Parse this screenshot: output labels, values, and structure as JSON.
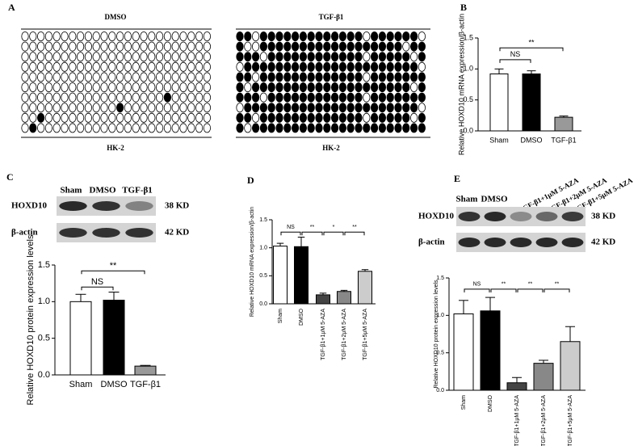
{
  "panel_labels": [
    "A",
    "B",
    "C",
    "D",
    "E"
  ],
  "methylation": [
    {
      "title": "DMSO",
      "cell": "HK-2",
      "sites": [
        [
          0,
          0,
          0,
          0,
          0,
          0,
          0,
          0,
          0,
          0,
          0,
          0,
          0,
          0,
          0,
          0,
          0,
          0,
          0,
          0,
          0,
          0,
          0,
          0
        ],
        [
          0,
          0,
          0,
          0,
          0,
          0,
          0,
          0,
          0,
          0,
          0,
          0,
          0,
          0,
          0,
          0,
          0,
          0,
          0,
          0,
          0,
          0,
          0,
          0
        ],
        [
          0,
          0,
          0,
          0,
          0,
          0,
          0,
          0,
          0,
          0,
          0,
          0,
          0,
          0,
          0,
          0,
          0,
          0,
          0,
          0,
          0,
          0,
          0,
          0
        ],
        [
          0,
          0,
          0,
          0,
          0,
          0,
          0,
          0,
          0,
          0,
          0,
          0,
          0,
          0,
          0,
          0,
          0,
          0,
          0,
          0,
          0,
          0,
          0,
          0
        ],
        [
          0,
          0,
          0,
          0,
          0,
          0,
          0,
          0,
          0,
          0,
          0,
          0,
          0,
          0,
          0,
          0,
          0,
          0,
          0,
          0,
          0,
          0,
          0,
          0
        ],
        [
          0,
          0,
          0,
          0,
          0,
          0,
          0,
          0,
          0,
          0,
          0,
          0,
          0,
          0,
          0,
          0,
          0,
          0,
          0,
          0,
          0,
          0,
          0,
          0
        ],
        [
          0,
          0,
          0,
          0,
          0,
          0,
          0,
          0,
          0,
          0,
          0,
          0,
          0,
          0,
          0,
          0,
          0,
          0,
          1,
          0,
          0,
          0,
          0,
          0
        ],
        [
          0,
          0,
          0,
          0,
          0,
          0,
          0,
          0,
          0,
          0,
          0,
          0,
          1,
          0,
          0,
          0,
          0,
          0,
          0,
          0,
          0,
          0,
          0,
          0
        ],
        [
          0,
          0,
          1,
          0,
          0,
          0,
          0,
          0,
          0,
          0,
          0,
          0,
          0,
          0,
          0,
          0,
          0,
          0,
          0,
          0,
          0,
          0,
          0,
          0
        ],
        [
          0,
          1,
          0,
          0,
          0,
          0,
          0,
          0,
          0,
          0,
          0,
          0,
          0,
          0,
          0,
          0,
          0,
          0,
          0,
          0,
          0,
          0,
          0,
          0
        ]
      ]
    },
    {
      "title": "TGF-β1",
      "cell": "HK-2",
      "sites": [
        [
          1,
          1,
          0,
          1,
          1,
          1,
          1,
          1,
          1,
          1,
          1,
          1,
          1,
          1,
          1,
          1,
          0,
          1,
          1,
          1,
          1,
          1,
          1,
          0
        ],
        [
          1,
          0,
          0,
          1,
          1,
          1,
          1,
          1,
          1,
          1,
          1,
          1,
          1,
          1,
          1,
          1,
          1,
          1,
          1,
          1,
          1,
          0,
          1,
          1
        ],
        [
          1,
          1,
          1,
          0,
          1,
          1,
          1,
          1,
          1,
          1,
          1,
          1,
          1,
          1,
          1,
          1,
          0,
          1,
          1,
          1,
          1,
          1,
          0,
          1
        ],
        [
          0,
          1,
          1,
          1,
          1,
          1,
          1,
          1,
          1,
          1,
          1,
          1,
          1,
          1,
          1,
          1,
          1,
          1,
          1,
          1,
          1,
          1,
          1,
          0
        ],
        [
          1,
          1,
          0,
          1,
          1,
          1,
          1,
          1,
          1,
          1,
          1,
          1,
          1,
          1,
          1,
          1,
          0,
          1,
          1,
          1,
          1,
          1,
          1,
          1
        ],
        [
          1,
          0,
          1,
          1,
          1,
          1,
          1,
          1,
          1,
          1,
          1,
          1,
          1,
          1,
          1,
          1,
          1,
          1,
          1,
          1,
          1,
          1,
          0,
          1
        ],
        [
          1,
          1,
          1,
          0,
          1,
          1,
          1,
          1,
          1,
          1,
          1,
          1,
          1,
          1,
          1,
          1,
          0,
          1,
          1,
          1,
          1,
          1,
          1,
          1
        ],
        [
          0,
          1,
          1,
          1,
          1,
          1,
          1,
          1,
          1,
          1,
          1,
          1,
          1,
          1,
          1,
          1,
          1,
          1,
          1,
          1,
          1,
          1,
          1,
          0
        ],
        [
          1,
          1,
          0,
          1,
          1,
          1,
          1,
          1,
          1,
          1,
          1,
          1,
          1,
          1,
          1,
          1,
          0,
          1,
          1,
          1,
          1,
          1,
          0,
          1
        ],
        [
          1,
          0,
          1,
          1,
          1,
          1,
          1,
          1,
          1,
          1,
          1,
          1,
          1,
          1,
          1,
          1,
          1,
          1,
          1,
          1,
          1,
          1,
          1,
          1
        ]
      ]
    }
  ],
  "blots": [
    {
      "lanes": [
        "Sham",
        "DMSO",
        "TGF-β1"
      ],
      "rows": [
        {
          "protein": "HOXD10",
          "size": "38 KD"
        },
        {
          "protein": "β-actin",
          "size": "42 KD"
        }
      ]
    },
    {
      "lanes": [
        "Sham",
        "DMSO",
        "TGF-β1+1μM 5-AZA",
        "TGF-β1+2μM 5-AZA",
        "TGF-β1+5μM 5-AZA"
      ],
      "rows": [
        {
          "protein": "HOXD10",
          "size": "38 KD"
        },
        {
          "protein": "β-actin",
          "size": "42 KD"
        }
      ]
    }
  ],
  "chart_data": [
    {
      "type": "bar",
      "ylabel": "Relative HOXD10 mRNA expression/β-actin",
      "categories": [
        "Sham",
        "DMSO",
        "TGF-β1"
      ],
      "values": [
        0.92,
        0.92,
        0.22
      ],
      "errors": [
        0.08,
        0.05,
        0.02
      ],
      "colors": [
        "#ffffff",
        "#000000",
        "#999999"
      ],
      "ylim": [
        0,
        1.5
      ],
      "yticks": [
        {
          "value": 0,
          "label": "0.0"
        },
        {
          "value": 0.5,
          "label": "0.5"
        },
        {
          "value": 1,
          "label": "1.0"
        },
        {
          "value": 1.5,
          "label": "1.5"
        }
      ],
      "annotations": [
        "NS",
        "**"
      ]
    },
    {
      "type": "bar",
      "ylabel": "Relative HOXD10 protein expression levels",
      "categories": [
        "Sham",
        "DMSO",
        "TGF-β1"
      ],
      "values": [
        1.0,
        1.02,
        0.12
      ],
      "errors": [
        0.1,
        0.11,
        0.01
      ],
      "colors": [
        "#ffffff",
        "#000000",
        "#999999"
      ],
      "ylim": [
        0,
        1.5
      ],
      "yticks": [
        {
          "value": 0,
          "label": "0.0"
        },
        {
          "value": 0.5,
          "label": "0.5"
        },
        {
          "value": 1,
          "label": "1.0"
        },
        {
          "value": 1.5,
          "label": "1.5"
        }
      ],
      "annotations": [
        "NS",
        "**"
      ]
    },
    {
      "type": "bar",
      "ylabel": "Relative HOXD10 mRNA expression/β-actin",
      "categories": [
        "Sham",
        "DMSO",
        "TGF-β1+1μM 5-AZA",
        "TGF-β1+2μM 5-AZA",
        "TGF-β1+5μM 5-AZA"
      ],
      "values": [
        1.03,
        1.02,
        0.16,
        0.22,
        0.58
      ],
      "errors": [
        0.05,
        0.17,
        0.03,
        0.02,
        0.03
      ],
      "colors": [
        "#ffffff",
        "#000000",
        "#444444",
        "#888888",
        "#cccccc"
      ],
      "ylim": [
        0,
        1.5
      ],
      "yticks": [
        {
          "value": 0,
          "label": "0.0"
        },
        {
          "value": 0.5,
          "label": "0.5"
        },
        {
          "value": 1,
          "label": "1.0"
        },
        {
          "value": 1.5,
          "label": "1.5"
        }
      ],
      "annotations": [
        "NS",
        "**",
        "*",
        "**"
      ]
    },
    {
      "type": "bar",
      "ylabel": "Relative HOXD10 protein expression levels",
      "categories": [
        "Sham",
        "DMSO",
        "TGF-β1+1μM 5-AZA",
        "TGF-β1+2μM 5-AZA",
        "TGF-β1+5μM 5-AZA"
      ],
      "values": [
        1.02,
        1.06,
        0.1,
        0.36,
        0.65
      ],
      "errors": [
        0.18,
        0.18,
        0.07,
        0.04,
        0.2
      ],
      "colors": [
        "#ffffff",
        "#000000",
        "#444444",
        "#888888",
        "#cccccc"
      ],
      "ylim": [
        0,
        1.5
      ],
      "yticks": [
        {
          "value": 0,
          "label": "0.0"
        },
        {
          "value": 0.5,
          "label": "0.5"
        },
        {
          "value": 1,
          "label": "1.0"
        },
        {
          "value": 1.5,
          "label": "1.5"
        }
      ],
      "annotations": [
        "NS",
        "**",
        "**",
        "**"
      ]
    }
  ]
}
